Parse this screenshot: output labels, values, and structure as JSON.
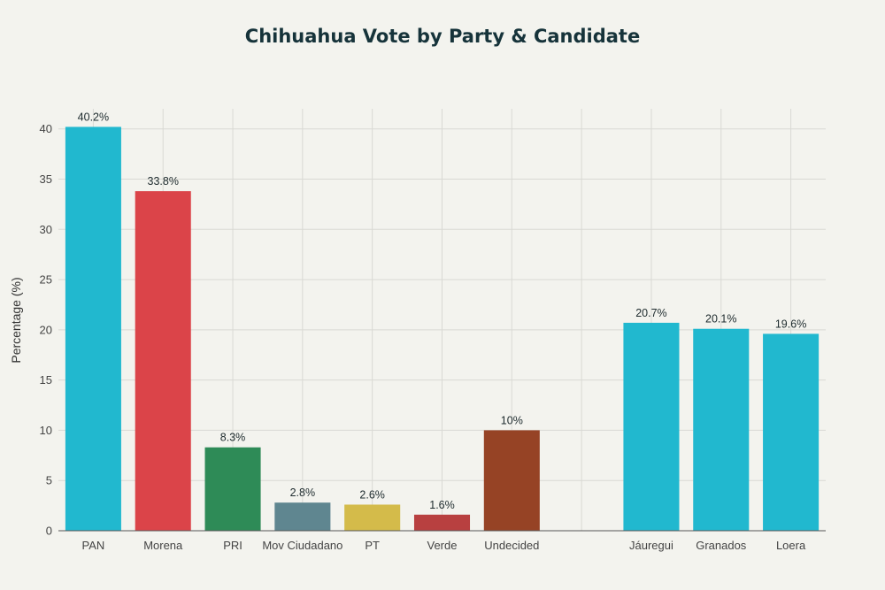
{
  "chart_data": {
    "type": "bar",
    "title": "Chihuahua Vote by Party & Candidate",
    "xlabel": "",
    "ylabel": "Percentage (%)",
    "ylim": [
      0,
      42
    ],
    "yticks": [
      0,
      5,
      10,
      15,
      20,
      25,
      30,
      35,
      40
    ],
    "grid": true,
    "categories": [
      "PAN",
      "Morena",
      "PRI",
      "Mov Ciudadano",
      "PT",
      "Verde",
      "Undecided",
      "",
      "Jáuregui",
      "Granados",
      "Loera"
    ],
    "values": [
      40.2,
      33.8,
      8.3,
      2.8,
      2.6,
      1.6,
      10,
      null,
      20.7,
      20.1,
      19.6
    ],
    "data_labels": [
      "40.2%",
      "33.8%",
      "8.3%",
      "2.8%",
      "2.6%",
      "1.6%",
      "10%",
      "",
      "20.7%",
      "20.1%",
      "19.6%"
    ],
    "colors": [
      "#21b8cf",
      "#db4449",
      "#2e8b57",
      "#5f8690",
      "#d4bb4a",
      "#b84040",
      "#964325",
      "#000000",
      "#21b8cf",
      "#21b8cf",
      "#21b8cf"
    ]
  }
}
